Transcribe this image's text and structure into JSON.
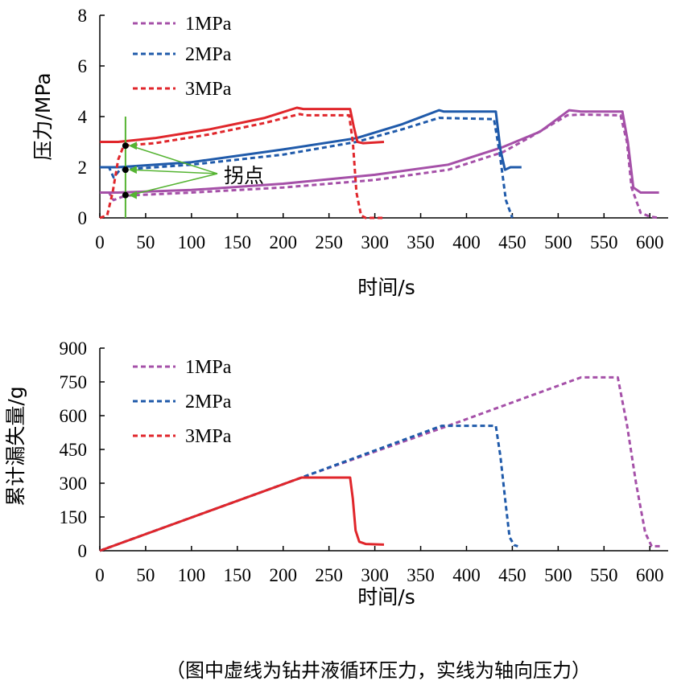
{
  "colors": {
    "p1": "#a550a8",
    "p2": "#1f5aaa",
    "p3": "#e0262b",
    "guide": "#55b432"
  },
  "chart_data": [
    {
      "type": "line",
      "xlabel": "时间/s",
      "ylabel": "压力/MPa",
      "xlim": [
        0,
        620
      ],
      "ylim": [
        0,
        8
      ],
      "x_ticks": [
        "0",
        "50",
        "100",
        "150",
        "200",
        "250",
        "300",
        "350",
        "400",
        "450",
        "500",
        "550",
        "600"
      ],
      "y_ticks": [
        "0",
        "2",
        "4",
        "6",
        "8"
      ],
      "legend": [
        "1MPa",
        "2MPa",
        "3MPa"
      ],
      "legend_position": "top-left",
      "annotation": {
        "text": "拐点",
        "points": [
          [
            28,
            2.85
          ],
          [
            28,
            1.9
          ],
          [
            28,
            0.9
          ]
        ]
      },
      "guide_line_x": 28,
      "series": [
        {
          "name": "1MPa",
          "style": "dashed",
          "color_key": "p1",
          "points": [
            [
              0,
              1.0
            ],
            [
              10,
              1.0
            ],
            [
              15,
              0.7
            ],
            [
              28,
              0.88
            ],
            [
              100,
              1.0
            ],
            [
              200,
              1.2
            ],
            [
              300,
              1.5
            ],
            [
              380,
              1.9
            ],
            [
              440,
              2.6
            ],
            [
              470,
              3.2
            ],
            [
              510,
              4.05
            ],
            [
              525,
              4.08
            ],
            [
              568,
              4.05
            ],
            [
              575,
              3.0
            ],
            [
              580,
              1.2
            ],
            [
              590,
              0.2
            ],
            [
              600,
              0.05
            ],
            [
              610,
              0.0
            ]
          ]
        },
        {
          "name": "1MPa",
          "style": "solid",
          "color_key": "p1",
          "points": [
            [
              0,
              1.0
            ],
            [
              20,
              1.0
            ],
            [
              100,
              1.1
            ],
            [
              200,
              1.35
            ],
            [
              300,
              1.7
            ],
            [
              380,
              2.1
            ],
            [
              440,
              2.8
            ],
            [
              480,
              3.4
            ],
            [
              512,
              4.25
            ],
            [
              525,
              4.2
            ],
            [
              570,
              4.2
            ],
            [
              576,
              3.0
            ],
            [
              582,
              1.2
            ],
            [
              590,
              1.0
            ],
            [
              610,
              1.0
            ]
          ]
        },
        {
          "name": "2MPa",
          "style": "dashed",
          "color_key": "p2",
          "points": [
            [
              0,
              2.0
            ],
            [
              10,
              2.0
            ],
            [
              15,
              1.6
            ],
            [
              22,
              1.9
            ],
            [
              100,
              2.1
            ],
            [
              200,
              2.5
            ],
            [
              280,
              3.0
            ],
            [
              330,
              3.5
            ],
            [
              370,
              3.95
            ],
            [
              430,
              3.9
            ],
            [
              436,
              2.6
            ],
            [
              443,
              0.7
            ],
            [
              450,
              0.0
            ]
          ]
        },
        {
          "name": "2MPa",
          "style": "solid",
          "color_key": "p2",
          "points": [
            [
              0,
              2.0
            ],
            [
              20,
              2.0
            ],
            [
              100,
              2.2
            ],
            [
              200,
              2.7
            ],
            [
              280,
              3.15
            ],
            [
              330,
              3.7
            ],
            [
              370,
              4.25
            ],
            [
              375,
              4.2
            ],
            [
              432,
              4.2
            ],
            [
              437,
              2.7
            ],
            [
              442,
              1.9
            ],
            [
              448,
              2.0
            ],
            [
              460,
              2.0
            ]
          ]
        },
        {
          "name": "3MPa",
          "style": "dashed",
          "color_key": "p3",
          "points": [
            [
              0,
              0.0
            ],
            [
              8,
              0.1
            ],
            [
              14,
              1.0
            ],
            [
              20,
              2.3
            ],
            [
              26,
              2.85
            ],
            [
              60,
              2.95
            ],
            [
              120,
              3.3
            ],
            [
              180,
              3.75
            ],
            [
              218,
              4.1
            ],
            [
              225,
              4.05
            ],
            [
              272,
              4.05
            ],
            [
              276,
              3.0
            ],
            [
              280,
              1.0
            ],
            [
              285,
              0.1
            ],
            [
              290,
              0.0
            ],
            [
              310,
              0.0
            ]
          ]
        },
        {
          "name": "3MPa",
          "style": "solid",
          "color_key": "p3",
          "points": [
            [
              0,
              3.0
            ],
            [
              20,
              3.0
            ],
            [
              60,
              3.15
            ],
            [
              120,
              3.5
            ],
            [
              180,
              3.95
            ],
            [
              215,
              4.35
            ],
            [
              222,
              4.3
            ],
            [
              273,
              4.3
            ],
            [
              277,
              3.6
            ],
            [
              281,
              3.0
            ],
            [
              287,
              2.95
            ],
            [
              310,
              3.0
            ]
          ]
        }
      ]
    },
    {
      "type": "line",
      "xlabel": "时间/s",
      "ylabel": "累计漏失量/g",
      "xlim": [
        0,
        620
      ],
      "ylim": [
        0,
        900
      ],
      "x_ticks": [
        "0",
        "50",
        "100",
        "150",
        "200",
        "250",
        "300",
        "350",
        "400",
        "450",
        "500",
        "550",
        "600"
      ],
      "y_ticks": [
        "0",
        "150",
        "300",
        "450",
        "600",
        "750",
        "900"
      ],
      "legend": [
        "1MPa",
        "2MPa",
        "3MPa"
      ],
      "legend_position": "top-right",
      "series": [
        {
          "name": "1MPa",
          "style": "dashed",
          "color_key": "p1",
          "points": [
            [
              0,
              0
            ],
            [
              220,
              325
            ],
            [
              380,
              555
            ],
            [
              525,
              770
            ],
            [
              565,
              770
            ],
            [
              575,
              560
            ],
            [
              585,
              300
            ],
            [
              595,
              80
            ],
            [
              602,
              20
            ],
            [
              612,
              20
            ]
          ]
        },
        {
          "name": "2MPa",
          "style": "dashed",
          "color_key": "p2",
          "points": [
            [
              0,
              0
            ],
            [
              220,
              325
            ],
            [
              373,
              555
            ],
            [
              432,
              555
            ],
            [
              437,
              420
            ],
            [
              443,
              200
            ],
            [
              447,
              60
            ],
            [
              452,
              25
            ],
            [
              456,
              20
            ]
          ]
        },
        {
          "name": "3MPa",
          "style": "solid",
          "color_key": "p3",
          "points": [
            [
              0,
              0
            ],
            [
              220,
              325
            ],
            [
              273,
              325
            ],
            [
              276,
              230
            ],
            [
              279,
              90
            ],
            [
              283,
              40
            ],
            [
              290,
              30
            ],
            [
              310,
              27
            ]
          ]
        }
      ]
    }
  ],
  "footnote": "（图中虚线为钻井液循环压力，实线为轴向压力）"
}
